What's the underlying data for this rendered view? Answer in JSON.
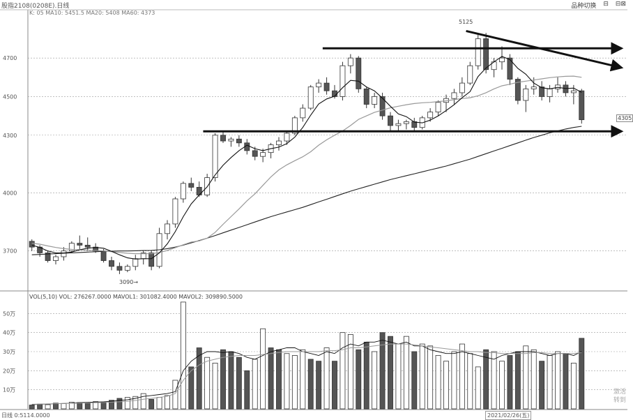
{
  "header": {
    "title": "股指2108(0208E).日线",
    "tools": [
      "品种切换",
      "⊟",
      "⊟⊠"
    ]
  },
  "price_panel": {
    "indicator_text": "K: 05 MA10: 5451.5 MA20: 5408 MA60: 4373",
    "current_price_label": "4305",
    "high_label": "5125",
    "low_label": "3090→"
  },
  "volume_panel": {
    "indicator_text": "VOL(5,10) VOL: 276267.0000 MAVOL1: 301082.4000 MAVOL2: 309890.5000"
  },
  "footer": {
    "left_text": "日线 0:5114.0000",
    "date_label": "2021/02/26(五)"
  },
  "watermark": [
    "激活",
    "转到"
  ],
  "colors": {
    "up": "#ffffff",
    "down": "#555555",
    "ma_short": "#111111",
    "ma_mid": "#999999",
    "ma_long": "#222222",
    "grid": "#999999"
  },
  "chart_data": [
    {
      "type": "candlestick",
      "ylim": [
        3500,
        4950
      ],
      "yticks": [
        3700,
        4000,
        4300,
        4500,
        4700
      ],
      "ytick_labels": [
        "3700",
        "4000",
        "4300",
        "4500",
        "4700"
      ],
      "candles": [
        [
          3750,
          3760,
          3700,
          3720
        ],
        [
          3720,
          3730,
          3670,
          3690
        ],
        [
          3690,
          3700,
          3640,
          3650
        ],
        [
          3650,
          3680,
          3630,
          3670
        ],
        [
          3670,
          3720,
          3650,
          3700
        ],
        [
          3700,
          3750,
          3690,
          3740
        ],
        [
          3740,
          3780,
          3710,
          3730
        ],
        [
          3730,
          3770,
          3700,
          3720
        ],
        [
          3720,
          3740,
          3690,
          3700
        ],
        [
          3700,
          3710,
          3640,
          3650
        ],
        [
          3650,
          3670,
          3600,
          3620
        ],
        [
          3620,
          3640,
          3580,
          3600
        ],
        [
          3600,
          3630,
          3590,
          3620
        ],
        [
          3620,
          3680,
          3600,
          3660
        ],
        [
          3660,
          3700,
          3630,
          3690
        ],
        [
          3690,
          3700,
          3600,
          3620
        ],
        [
          3620,
          3820,
          3610,
          3790
        ],
        [
          3790,
          3860,
          3760,
          3840
        ],
        [
          3840,
          3980,
          3820,
          3970
        ],
        [
          3970,
          4060,
          3950,
          4050
        ],
        [
          4050,
          4080,
          4010,
          4030
        ],
        [
          4030,
          4060,
          3980,
          3990
        ],
        [
          3990,
          4100,
          3980,
          4080
        ],
        [
          4080,
          4310,
          4060,
          4300
        ],
        [
          4300,
          4320,
          4260,
          4270
        ],
        [
          4270,
          4290,
          4240,
          4280
        ],
        [
          4280,
          4300,
          4240,
          4260
        ],
        [
          4260,
          4280,
          4200,
          4220
        ],
        [
          4220,
          4240,
          4170,
          4190
        ],
        [
          4190,
          4230,
          4160,
          4210
        ],
        [
          4210,
          4260,
          4180,
          4250
        ],
        [
          4250,
          4290,
          4220,
          4270
        ],
        [
          4270,
          4320,
          4250,
          4310
        ],
        [
          4310,
          4400,
          4300,
          4390
        ],
        [
          4390,
          4460,
          4370,
          4440
        ],
        [
          4440,
          4560,
          4430,
          4550
        ],
        [
          4550,
          4590,
          4520,
          4570
        ],
        [
          4570,
          4600,
          4510,
          4530
        ],
        [
          4530,
          4560,
          4490,
          4500
        ],
        [
          4500,
          4680,
          4480,
          4660
        ],
        [
          4660,
          4720,
          4620,
          4700
        ],
        [
          4700,
          4710,
          4520,
          4540
        ],
        [
          4540,
          4550,
          4440,
          4460
        ],
        [
          4460,
          4520,
          4440,
          4500
        ],
        [
          4500,
          4520,
          4380,
          4400
        ],
        [
          4400,
          4420,
          4320,
          4350
        ],
        [
          4350,
          4380,
          4320,
          4360
        ],
        [
          4360,
          4380,
          4330,
          4370
        ],
        [
          4370,
          4390,
          4320,
          4340
        ],
        [
          4340,
          4400,
          4330,
          4390
        ],
        [
          4390,
          4440,
          4370,
          4420
        ],
        [
          4420,
          4480,
          4400,
          4470
        ],
        [
          4470,
          4510,
          4420,
          4490
        ],
        [
          4490,
          4540,
          4460,
          4520
        ],
        [
          4520,
          4600,
          4500,
          4570
        ],
        [
          4570,
          4680,
          4560,
          4660
        ],
        [
          4660,
          4820,
          4640,
          4800
        ],
        [
          4800,
          4830,
          4620,
          4640
        ],
        [
          4640,
          4700,
          4600,
          4680
        ],
        [
          4680,
          4760,
          4640,
          4700
        ],
        [
          4700,
          4720,
          4560,
          4590
        ],
        [
          4590,
          4600,
          4460,
          4480
        ],
        [
          4480,
          4560,
          4420,
          4540
        ],
        [
          4540,
          4600,
          4510,
          4550
        ],
        [
          4550,
          4580,
          4480,
          4500
        ],
        [
          4500,
          4560,
          4470,
          4540
        ],
        [
          4540,
          4600,
          4520,
          4560
        ],
        [
          4560,
          4580,
          4500,
          4520
        ],
        [
          4520,
          4560,
          4460,
          4530
        ],
        [
          4530,
          4540,
          4360,
          4380
        ]
      ],
      "ma_short": [
        3730,
        3718,
        3700,
        3690,
        3690,
        3694,
        3706,
        3714,
        3718,
        3714,
        3698,
        3680,
        3664,
        3658,
        3660,
        3660,
        3690,
        3737,
        3800,
        3878,
        3944,
        3990,
        4032,
        4094,
        4144,
        4184,
        4220,
        4248,
        4230,
        4220,
        4230,
        4238,
        4256,
        4290,
        4340,
        4404,
        4462,
        4488,
        4502,
        4546,
        4584,
        4580,
        4550,
        4530,
        4492,
        4450,
        4410,
        4396,
        4368,
        4364,
        4378,
        4400,
        4428,
        4458,
        4494,
        4526,
        4604,
        4648,
        4680,
        4708,
        4692,
        4646,
        4616,
        4570,
        4546,
        4540,
        4548,
        4542,
        4544,
        4522
      ],
      "ma_mid": [
        3740,
        3735,
        3726,
        3718,
        3712,
        3708,
        3706,
        3704,
        3703,
        3700,
        3696,
        3692,
        3688,
        3686,
        3686,
        3686,
        3692,
        3702,
        3717,
        3732,
        3746,
        3752,
        3766,
        3796,
        3838,
        3878,
        3918,
        3960,
        3996,
        4040,
        4084,
        4120,
        4146,
        4168,
        4188,
        4214,
        4248,
        4276,
        4300,
        4322,
        4350,
        4382,
        4400,
        4418,
        4430,
        4442,
        4450,
        4458,
        4464,
        4468,
        4470,
        4474,
        4478,
        4484,
        4490,
        4494,
        4504,
        4520,
        4540,
        4556,
        4564,
        4574,
        4580,
        4586,
        4592,
        4598,
        4602,
        4605,
        4606,
        4600
      ],
      "ma_long": [
        3680,
        3682,
        3684,
        3686,
        3688,
        3690,
        3692,
        3694,
        3696,
        3698,
        3699,
        3700,
        3700,
        3701,
        3702,
        3703,
        3706,
        3712,
        3720,
        3730,
        3742,
        3754,
        3766,
        3780,
        3794,
        3808,
        3822,
        3836,
        3850,
        3864,
        3878,
        3890,
        3902,
        3914,
        3926,
        3940,
        3954,
        3968,
        3982,
        3996,
        4010,
        4022,
        4034,
        4046,
        4058,
        4070,
        4080,
        4090,
        4100,
        4110,
        4120,
        4130,
        4140,
        4152,
        4164,
        4176,
        4190,
        4204,
        4218,
        4232,
        4246,
        4260,
        4274,
        4288,
        4300,
        4312,
        4322,
        4332,
        4340,
        4346
      ],
      "annotations": [
        {
          "type": "arrow",
          "from": [
            37,
            4750
          ],
          "to": [
            71,
            4750
          ]
        },
        {
          "type": "arrow",
          "from": [
            55,
            4840
          ],
          "to": [
            71,
            4650
          ]
        },
        {
          "type": "arrow",
          "from": [
            22,
            4320
          ],
          "to": [
            71,
            4320
          ]
        }
      ]
    },
    {
      "type": "bar",
      "ylim": [
        0,
        600000
      ],
      "yticks": [
        100000,
        200000,
        300000,
        400000,
        500000
      ],
      "ytick_labels": [
        "10万",
        "20万",
        "30万",
        "40万",
        "50万"
      ],
      "volumes": [
        20000,
        25000,
        22000,
        30000,
        28000,
        35000,
        33000,
        30000,
        38000,
        36000,
        45000,
        55000,
        60000,
        65000,
        80000,
        50000,
        60000,
        70000,
        150000,
        560000,
        220000,
        320000,
        270000,
        240000,
        310000,
        300000,
        270000,
        200000,
        260000,
        420000,
        320000,
        310000,
        290000,
        280000,
        310000,
        260000,
        250000,
        320000,
        250000,
        400000,
        390000,
        310000,
        350000,
        300000,
        400000,
        380000,
        340000,
        380000,
        300000,
        340000,
        330000,
        280000,
        250000,
        300000,
        340000,
        290000,
        220000,
        310000,
        300000,
        250000,
        280000,
        300000,
        330000,
        310000,
        250000,
        280000,
        300000,
        290000,
        240000,
        370000
      ],
      "up": [
        false,
        false,
        true,
        false,
        true,
        true,
        false,
        false,
        true,
        false,
        false,
        false,
        true,
        true,
        true,
        false,
        true,
        true,
        true,
        true,
        false,
        false,
        true,
        true,
        false,
        false,
        false,
        false,
        true,
        true,
        false,
        false,
        true,
        true,
        true,
        false,
        false,
        true,
        false,
        true,
        true,
        false,
        false,
        true,
        false,
        false,
        true,
        true,
        false,
        true,
        true,
        true,
        true,
        true,
        true,
        true,
        true,
        false,
        true,
        true,
        false,
        false,
        true,
        true,
        false,
        true,
        true,
        false,
        true,
        false
      ],
      "mavol1": [
        22000,
        24000,
        25000,
        27000,
        28000,
        30000,
        33000,
        34000,
        36000,
        37000,
        40000,
        44000,
        48000,
        55000,
        65000,
        70000,
        75000,
        80000,
        90000,
        200000,
        250000,
        280000,
        300000,
        300000,
        295000,
        300000,
        290000,
        270000,
        260000,
        280000,
        300000,
        310000,
        320000,
        320000,
        300000,
        290000,
        280000,
        300000,
        290000,
        320000,
        340000,
        330000,
        350000,
        350000,
        360000,
        350000,
        340000,
        350000,
        330000,
        330000,
        310000,
        300000,
        290000,
        290000,
        300000,
        290000,
        280000,
        270000,
        260000,
        280000,
        290000,
        300000,
        300000,
        300000,
        290000,
        280000,
        290000,
        290000,
        280000,
        300000
      ],
      "mavol2": [
        24000,
        25000,
        26000,
        27000,
        28000,
        29000,
        30000,
        31000,
        32000,
        33000,
        35000,
        37000,
        40000,
        44000,
        50000,
        55000,
        60000,
        66000,
        80000,
        150000,
        200000,
        230000,
        250000,
        260000,
        270000,
        275000,
        280000,
        280000,
        280000,
        285000,
        290000,
        295000,
        300000,
        300000,
        300000,
        300000,
        300000,
        305000,
        305000,
        310000,
        320000,
        320000,
        325000,
        330000,
        335000,
        340000,
        340000,
        340000,
        335000,
        330000,
        325000,
        320000,
        315000,
        310000,
        305000,
        300000,
        300000,
        295000,
        295000,
        290000,
        290000,
        290000,
        290000,
        295000,
        295000,
        290000,
        290000,
        290000,
        290000,
        295000
      ]
    }
  ]
}
